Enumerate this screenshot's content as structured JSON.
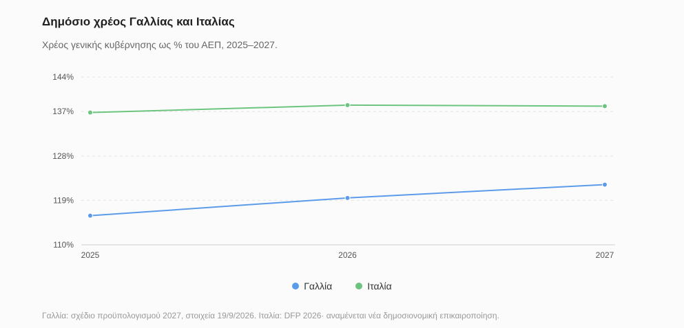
{
  "title": "Δημόσιο χρέος Γαλλίας και Ιταλίας",
  "subtitle": "Χρέος γενικής κυβέρνησης ως % του ΑΕΠ, 2025–2027.",
  "footnote": "Γαλλία: σχέδιο προϋπολογισμού 2027, στοιχεία 19/9/2026. Ιταλία: DFP 2026· αναμένεται νέα δημοσιονομική επικαιροποίηση.",
  "chart_data": {
    "type": "line",
    "title": "Δημόσιο χρέος Γαλλίας και Ιταλίας",
    "subtitle": "Χρέος γενικής κυβέρνησης ως % του ΑΕΠ, 2025–2027.",
    "x": [
      "2025",
      "2026",
      "2027"
    ],
    "y_ticks": [
      "110%",
      "119%",
      "128%",
      "137%",
      "144%"
    ],
    "y_tick_values": [
      110,
      119,
      128,
      137,
      144
    ],
    "ylim": [
      110,
      144
    ],
    "grid": true,
    "legend_position": "bottom",
    "series": [
      {
        "name": "Γαλλία",
        "color": "#5b9bea",
        "values": [
          115.9,
          119.5,
          122.2
        ]
      },
      {
        "name": "Ιταλία",
        "color": "#6cc47e",
        "values": [
          136.8,
          138.3,
          138.1
        ]
      }
    ]
  }
}
